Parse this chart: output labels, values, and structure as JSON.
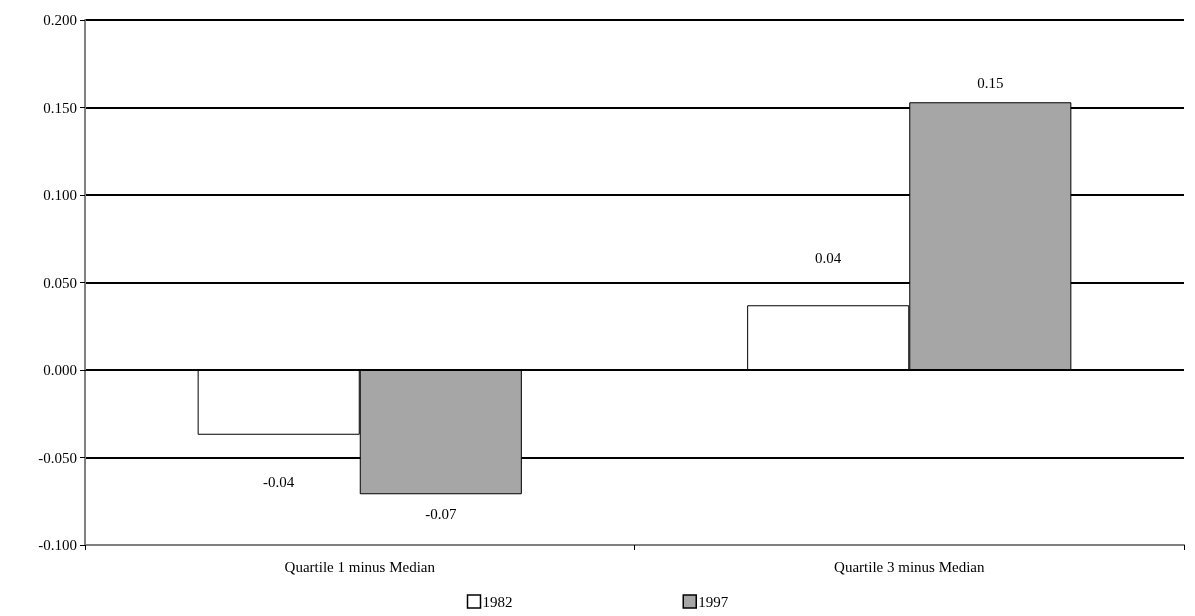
{
  "chart_data": {
    "type": "bar",
    "categories": [
      "Quartile 1 minus Median",
      "Quartile 3 minus Median"
    ],
    "series": [
      {
        "name": "1982",
        "color": "#ffffff",
        "values": [
          -0.037,
          0.037
        ],
        "value_labels": [
          "-0.04",
          "0.04"
        ]
      },
      {
        "name": "1997",
        "color": "#a6a6a6",
        "values": [
          -0.071,
          0.153
        ],
        "value_labels": [
          "-0.07",
          "0.15"
        ]
      }
    ],
    "ylim": [
      -0.1,
      0.2
    ],
    "yticks": [
      {
        "value": -0.1,
        "label": "-0.100"
      },
      {
        "value": -0.05,
        "label": "-0.050"
      },
      {
        "value": 0,
        "label": "0.000"
      },
      {
        "value": 0.05,
        "label": "0.050"
      },
      {
        "value": 0.1,
        "label": "0.100"
      },
      {
        "value": 0.15,
        "label": "0.150"
      },
      {
        "value": 0.2,
        "label": "0.200"
      }
    ],
    "grid": "y",
    "legend": "bottom"
  }
}
